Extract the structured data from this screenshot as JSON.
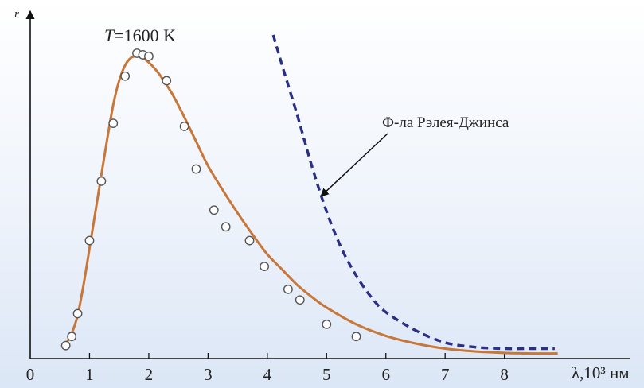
{
  "chart_data": {
    "type": "line",
    "title_prefix": "T",
    "title_value": "=1600 K",
    "ylabel": "r",
    "xlabel": "λ,10³ нм",
    "xlim": [
      0,
      9.2
    ],
    "ylim": [
      0,
      1.0
    ],
    "grid": false,
    "xticks": [
      0,
      1,
      2,
      3,
      4,
      5,
      6,
      7,
      8
    ],
    "xtick_labels": [
      "0",
      "1",
      "2",
      "3",
      "4",
      "5",
      "6",
      "7",
      "8"
    ],
    "series": [
      {
        "style": "solid",
        "color": "#c8773a",
        "x": [
          0.6,
          0.7,
          0.8,
          0.9,
          1.0,
          1.1,
          1.2,
          1.3,
          1.4,
          1.5,
          1.6,
          1.7,
          1.8,
          1.9,
          2.0,
          2.1,
          2.2,
          2.4,
          2.6,
          2.8,
          3.0,
          3.25,
          3.5,
          3.75,
          4.0,
          4.25,
          4.5,
          4.75,
          5.0,
          5.5,
          6.0,
          6.5,
          7.0,
          7.5,
          8.0,
          8.5,
          8.9
        ],
        "y": [
          0.045,
          0.08,
          0.14,
          0.24,
          0.36,
          0.48,
          0.6,
          0.72,
          0.83,
          0.91,
          0.96,
          0.985,
          0.99,
          0.985,
          0.97,
          0.95,
          0.925,
          0.865,
          0.79,
          0.71,
          0.63,
          0.55,
          0.475,
          0.405,
          0.34,
          0.29,
          0.24,
          0.2,
          0.165,
          0.11,
          0.072,
          0.047,
          0.03,
          0.021,
          0.016,
          0.014,
          0.014
        ]
      },
      {
        "name": "Ф-ла Рэлея-Джинса",
        "style": "dashed",
        "color": "#2b2f86",
        "x": [
          4.1,
          4.25,
          4.5,
          4.75,
          5.0,
          5.25,
          5.5,
          5.75,
          6.0,
          6.5,
          7.0,
          7.5,
          8.0,
          8.5,
          8.85
        ],
        "y": [
          1.06,
          0.96,
          0.8,
          0.63,
          0.48,
          0.36,
          0.27,
          0.2,
          0.15,
          0.09,
          0.05,
          0.035,
          0.03,
          0.03,
          0.03
        ]
      }
    ],
    "measured_points": {
      "x": [
        0.6,
        0.7,
        0.8,
        1.0,
        1.2,
        1.4,
        1.6,
        1.8,
        1.9,
        2.0,
        2.3,
        2.6,
        2.8,
        3.1,
        3.3,
        3.7,
        3.95,
        4.35,
        4.55,
        5.0,
        5.5
      ],
      "y": [
        0.04,
        0.07,
        0.145,
        0.385,
        0.58,
        0.77,
        0.925,
        1.0,
        0.995,
        0.99,
        0.91,
        0.76,
        0.62,
        0.485,
        0.43,
        0.385,
        0.3,
        0.225,
        0.19,
        0.11,
        0.07
      ]
    },
    "annotation": {
      "text": "Ф-ла Рэлея-Джинса",
      "points_to": [
        4.85,
        0.52
      ]
    }
  }
}
